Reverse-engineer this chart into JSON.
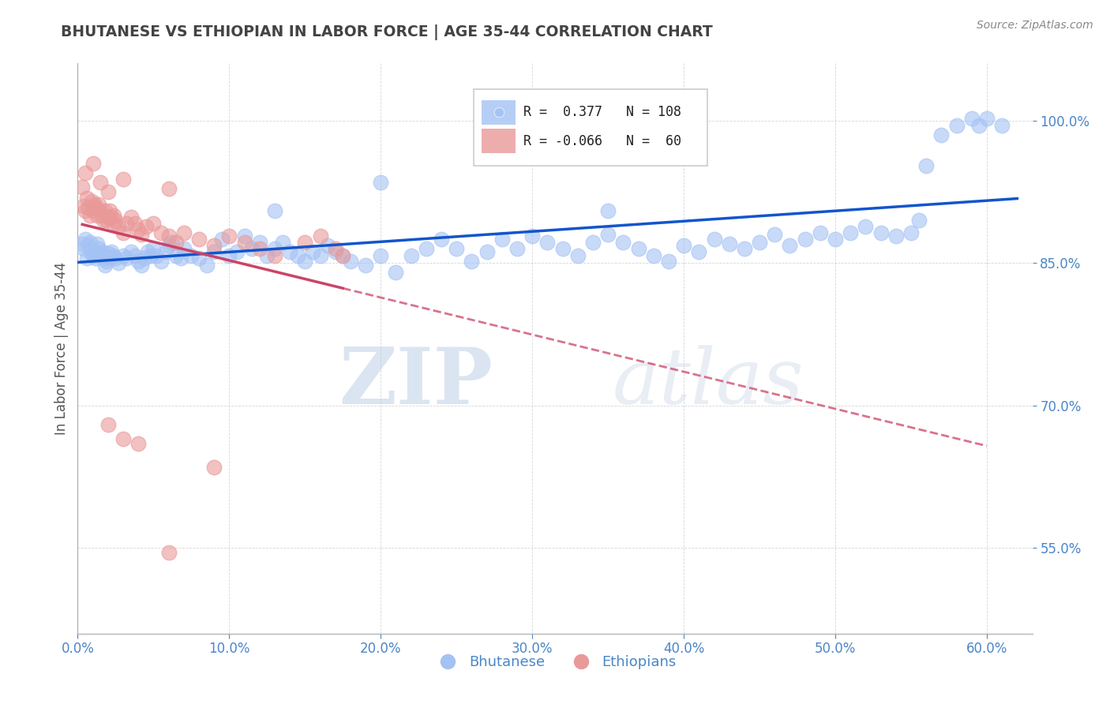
{
  "title": "BHUTANESE VS ETHIOPIAN IN LABOR FORCE | AGE 35-44 CORRELATION CHART",
  "source": "Source: ZipAtlas.com",
  "ylabel": "In Labor Force | Age 35-44",
  "xlabel_ticks": [
    "0.0%",
    "10.0%",
    "20.0%",
    "30.0%",
    "40.0%",
    "50.0%",
    "60.0%"
  ],
  "xlim": [
    0.0,
    0.63
  ],
  "ylim": [
    0.46,
    1.06
  ],
  "ytick_positions": [
    0.55,
    0.7,
    0.85,
    1.0
  ],
  "ytick_labels": [
    "55.0%",
    "70.0%",
    "85.0%",
    "100.0%"
  ],
  "xtick_positions": [
    0.0,
    0.1,
    0.2,
    0.3,
    0.4,
    0.5,
    0.6
  ],
  "R_blue": 0.377,
  "N_blue": 108,
  "R_pink": -0.066,
  "N_pink": 60,
  "legend_labels": [
    "Bhutanese",
    "Ethiopians"
  ],
  "blue_color": "#a4c2f4",
  "pink_color": "#ea9999",
  "blue_line_color": "#1155cc",
  "pink_line_color": "#cc4466",
  "watermark_zip": "ZIP",
  "watermark_atlas": "atlas",
  "title_color": "#434343",
  "axis_label_color": "#4a86c8",
  "ylabel_color": "#555555",
  "background_color": "#ffffff",
  "blue_scatter": [
    [
      0.003,
      0.87
    ],
    [
      0.004,
      0.865
    ],
    [
      0.005,
      0.875
    ],
    [
      0.006,
      0.855
    ],
    [
      0.007,
      0.868
    ],
    [
      0.008,
      0.872
    ],
    [
      0.009,
      0.86
    ],
    [
      0.01,
      0.858
    ],
    [
      0.011,
      0.862
    ],
    [
      0.012,
      0.855
    ],
    [
      0.013,
      0.87
    ],
    [
      0.014,
      0.865
    ],
    [
      0.015,
      0.858
    ],
    [
      0.016,
      0.862
    ],
    [
      0.017,
      0.855
    ],
    [
      0.018,
      0.848
    ],
    [
      0.019,
      0.852
    ],
    [
      0.02,
      0.86
    ],
    [
      0.021,
      0.855
    ],
    [
      0.022,
      0.862
    ],
    [
      0.023,
      0.858
    ],
    [
      0.025,
      0.855
    ],
    [
      0.027,
      0.85
    ],
    [
      0.03,
      0.858
    ],
    [
      0.032,
      0.855
    ],
    [
      0.035,
      0.862
    ],
    [
      0.038,
      0.858
    ],
    [
      0.04,
      0.852
    ],
    [
      0.042,
      0.848
    ],
    [
      0.044,
      0.855
    ],
    [
      0.046,
      0.862
    ],
    [
      0.048,
      0.858
    ],
    [
      0.05,
      0.865
    ],
    [
      0.052,
      0.858
    ],
    [
      0.055,
      0.852
    ],
    [
      0.058,
      0.862
    ],
    [
      0.06,
      0.868
    ],
    [
      0.062,
      0.872
    ],
    [
      0.065,
      0.858
    ],
    [
      0.068,
      0.855
    ],
    [
      0.07,
      0.865
    ],
    [
      0.075,
      0.858
    ],
    [
      0.08,
      0.855
    ],
    [
      0.085,
      0.848
    ],
    [
      0.09,
      0.862
    ],
    [
      0.095,
      0.875
    ],
    [
      0.1,
      0.858
    ],
    [
      0.105,
      0.862
    ],
    [
      0.11,
      0.878
    ],
    [
      0.115,
      0.865
    ],
    [
      0.12,
      0.872
    ],
    [
      0.125,
      0.858
    ],
    [
      0.13,
      0.865
    ],
    [
      0.135,
      0.872
    ],
    [
      0.14,
      0.862
    ],
    [
      0.145,
      0.858
    ],
    [
      0.15,
      0.852
    ],
    [
      0.155,
      0.862
    ],
    [
      0.16,
      0.858
    ],
    [
      0.165,
      0.868
    ],
    [
      0.17,
      0.862
    ],
    [
      0.175,
      0.858
    ],
    [
      0.18,
      0.852
    ],
    [
      0.19,
      0.848
    ],
    [
      0.2,
      0.858
    ],
    [
      0.21,
      0.84
    ],
    [
      0.22,
      0.858
    ],
    [
      0.23,
      0.865
    ],
    [
      0.24,
      0.875
    ],
    [
      0.25,
      0.865
    ],
    [
      0.26,
      0.852
    ],
    [
      0.27,
      0.862
    ],
    [
      0.28,
      0.875
    ],
    [
      0.29,
      0.865
    ],
    [
      0.3,
      0.878
    ],
    [
      0.31,
      0.872
    ],
    [
      0.32,
      0.865
    ],
    [
      0.33,
      0.858
    ],
    [
      0.34,
      0.872
    ],
    [
      0.35,
      0.88
    ],
    [
      0.36,
      0.872
    ],
    [
      0.37,
      0.865
    ],
    [
      0.38,
      0.858
    ],
    [
      0.39,
      0.852
    ],
    [
      0.4,
      0.868
    ],
    [
      0.41,
      0.862
    ],
    [
      0.42,
      0.875
    ],
    [
      0.43,
      0.87
    ],
    [
      0.44,
      0.865
    ],
    [
      0.45,
      0.872
    ],
    [
      0.46,
      0.88
    ],
    [
      0.47,
      0.868
    ],
    [
      0.48,
      0.875
    ],
    [
      0.49,
      0.882
    ],
    [
      0.5,
      0.875
    ],
    [
      0.51,
      0.882
    ],
    [
      0.52,
      0.888
    ],
    [
      0.53,
      0.882
    ],
    [
      0.54,
      0.878
    ],
    [
      0.55,
      0.882
    ],
    [
      0.13,
      0.905
    ],
    [
      0.2,
      0.935
    ],
    [
      0.35,
      0.905
    ],
    [
      0.555,
      0.895
    ],
    [
      0.56,
      0.952
    ],
    [
      0.57,
      0.985
    ],
    [
      0.58,
      0.995
    ],
    [
      0.59,
      1.002
    ],
    [
      0.595,
      0.995
    ],
    [
      0.6,
      1.002
    ],
    [
      0.61,
      0.995
    ]
  ],
  "pink_scatter": [
    [
      0.003,
      0.93
    ],
    [
      0.004,
      0.91
    ],
    [
      0.005,
      0.905
    ],
    [
      0.006,
      0.918
    ],
    [
      0.007,
      0.908
    ],
    [
      0.008,
      0.9
    ],
    [
      0.009,
      0.915
    ],
    [
      0.01,
      0.905
    ],
    [
      0.011,
      0.912
    ],
    [
      0.012,
      0.908
    ],
    [
      0.013,
      0.9
    ],
    [
      0.014,
      0.912
    ],
    [
      0.015,
      0.905
    ],
    [
      0.016,
      0.9
    ],
    [
      0.017,
      0.895
    ],
    [
      0.018,
      0.905
    ],
    [
      0.019,
      0.895
    ],
    [
      0.02,
      0.898
    ],
    [
      0.021,
      0.905
    ],
    [
      0.022,
      0.898
    ],
    [
      0.023,
      0.892
    ],
    [
      0.024,
      0.9
    ],
    [
      0.025,
      0.895
    ],
    [
      0.027,
      0.888
    ],
    [
      0.03,
      0.882
    ],
    [
      0.032,
      0.892
    ],
    [
      0.035,
      0.898
    ],
    [
      0.038,
      0.892
    ],
    [
      0.04,
      0.885
    ],
    [
      0.042,
      0.88
    ],
    [
      0.045,
      0.888
    ],
    [
      0.05,
      0.892
    ],
    [
      0.055,
      0.882
    ],
    [
      0.06,
      0.878
    ],
    [
      0.065,
      0.872
    ],
    [
      0.07,
      0.882
    ],
    [
      0.08,
      0.875
    ],
    [
      0.09,
      0.868
    ],
    [
      0.1,
      0.878
    ],
    [
      0.11,
      0.872
    ],
    [
      0.12,
      0.865
    ],
    [
      0.13,
      0.858
    ],
    [
      0.15,
      0.872
    ],
    [
      0.16,
      0.878
    ],
    [
      0.17,
      0.865
    ],
    [
      0.175,
      0.858
    ],
    [
      0.005,
      0.945
    ],
    [
      0.015,
      0.935
    ],
    [
      0.02,
      0.925
    ],
    [
      0.03,
      0.938
    ],
    [
      0.06,
      0.928
    ],
    [
      0.01,
      0.955
    ],
    [
      0.02,
      0.68
    ],
    [
      0.03,
      0.665
    ],
    [
      0.04,
      0.66
    ],
    [
      0.06,
      0.545
    ],
    [
      0.09,
      0.635
    ]
  ]
}
